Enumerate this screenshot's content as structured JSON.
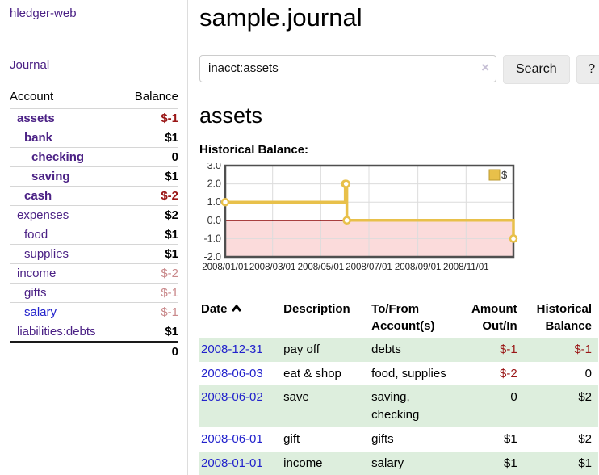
{
  "app": {
    "title": "hledger-web"
  },
  "sidebar": {
    "nav_journal": "Journal",
    "accounts_table": {
      "header_account": "Account",
      "header_balance": "Balance",
      "rows": [
        {
          "name": "assets",
          "depth": 1,
          "balance": "$-1",
          "bold": true,
          "balance_class": "neg-strong"
        },
        {
          "name": "bank",
          "depth": 2,
          "balance": "$1",
          "bold": true,
          "balance_class": ""
        },
        {
          "name": "checking",
          "depth": 3,
          "balance": "0",
          "bold": true,
          "balance_class": ""
        },
        {
          "name": "saving",
          "depth": 3,
          "balance": "$1",
          "bold": true,
          "balance_class": ""
        },
        {
          "name": "cash",
          "depth": 2,
          "balance": "$-2",
          "bold": true,
          "balance_class": "neg-strong"
        },
        {
          "name": "expenses",
          "depth": 1,
          "balance": "$2",
          "bold": false,
          "balance_class": ""
        },
        {
          "name": "food",
          "depth": 2,
          "balance": "$1",
          "bold": false,
          "balance_class": ""
        },
        {
          "name": "supplies",
          "depth": 2,
          "balance": "$1",
          "bold": false,
          "balance_class": ""
        },
        {
          "name": "income",
          "depth": 1,
          "balance": "$-2",
          "bold": false,
          "balance_class": "neg-soft"
        },
        {
          "name": "gifts",
          "depth": 2,
          "balance": "$-1",
          "bold": false,
          "balance_class": "neg-soft"
        },
        {
          "name": "salary",
          "depth": 2,
          "balance": "$-1",
          "bold": false,
          "balance_class": "neg-soft",
          "unvisited": true
        },
        {
          "name": "liabilities:debts",
          "depth": 1,
          "balance": "$1",
          "bold": false,
          "balance_class": ""
        }
      ],
      "total": "0"
    }
  },
  "main": {
    "title": "sample.journal",
    "search": {
      "value": "inacct:assets",
      "clear_icon": "×",
      "submit_label": "Search",
      "help_label": "?"
    },
    "account_heading": "assets",
    "chart_label": "Historical Balance:"
  },
  "chart_data": {
    "type": "line",
    "step": true,
    "title": "Historical Balance",
    "series": [
      {
        "name": "$",
        "color": "#e8c04a",
        "points": [
          {
            "x": "2008-01-01",
            "y": 1
          },
          {
            "x": "2008-06-01",
            "y": 2
          },
          {
            "x": "2008-06-02",
            "y": 2
          },
          {
            "x": "2008-06-03",
            "y": 0
          },
          {
            "x": "2008-12-31",
            "y": -1
          }
        ]
      }
    ],
    "x_start": "2008-01-01",
    "x_end": "2008-12-31",
    "ylim": [
      -2,
      3
    ],
    "yticks": [
      3.0,
      2.0,
      1.0,
      0.0,
      -1.0,
      -2.0
    ],
    "xticks": [
      "2008/01/01",
      "2008/03/01",
      "2008/05/01",
      "2008/07/01",
      "2008/09/01",
      "2008/11/01"
    ],
    "legend_position": "top-right",
    "grid": true,
    "negative_region_fill": "#fbdbdb",
    "zero_line_color": "#8b0000",
    "border_color": "#4f4f4f"
  },
  "transactions": {
    "headers": [
      {
        "line1": "Date",
        "line2": ""
      },
      {
        "line1": "Description",
        "line2": ""
      },
      {
        "line1": "To/From",
        "line2": "Account(s)"
      },
      {
        "line1": "Amount",
        "line2": "Out/In"
      },
      {
        "line1": "Historical",
        "line2": "Balance"
      }
    ],
    "sort_icon": "chevron-up",
    "rows": [
      {
        "date": "2008-12-31",
        "description": "pay off",
        "accounts": "debts",
        "amount": "$-1",
        "balance": "$-1"
      },
      {
        "date": "2008-06-03",
        "description": "eat & shop",
        "accounts": "food, supplies",
        "amount": "$-2",
        "balance": "0"
      },
      {
        "date": "2008-06-02",
        "description": "save",
        "accounts": "saving, checking",
        "amount": "0",
        "balance": "$2"
      },
      {
        "date": "2008-06-01",
        "description": "gift",
        "accounts": "gifts",
        "amount": "$1",
        "balance": "$2"
      },
      {
        "date": "2008-01-01",
        "description": "income",
        "accounts": "salary",
        "amount": "$1",
        "balance": "$1"
      }
    ]
  }
}
